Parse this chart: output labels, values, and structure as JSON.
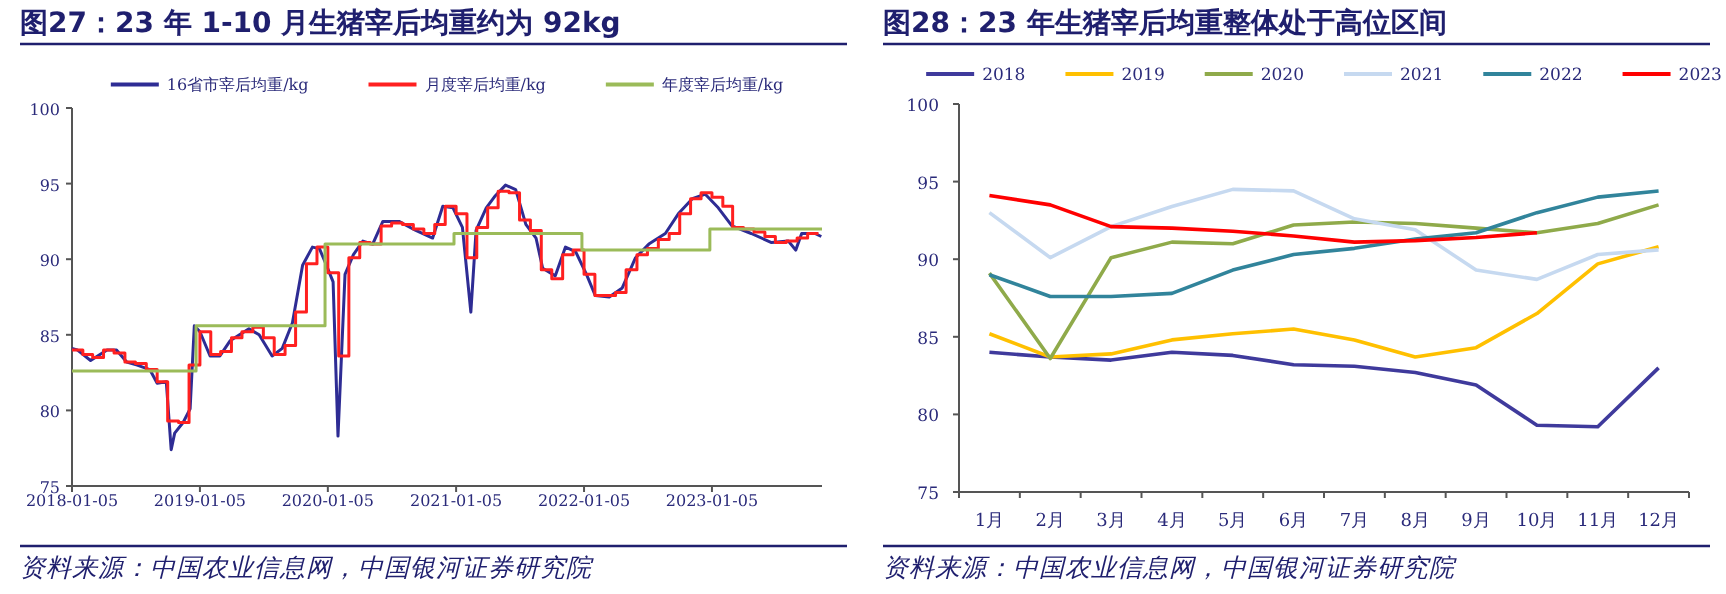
{
  "chart_data": [
    {
      "type": "line",
      "title": "图27：23 年 1-10 月生猪宰后均重约为 92kg",
      "annotations": [
        "资料来源：中国农业信息网，中国银河证券研究院"
      ],
      "legend": "top",
      "xlim": [
        "2018-01-05",
        "2023-11-15"
      ],
      "xticks": [
        "2018-01-05",
        "2019-01-05",
        "2020-01-05",
        "2021-01-05",
        "2022-01-05",
        "2023-01-05"
      ],
      "ylim": [
        75,
        100
      ],
      "yticks": [
        75,
        80,
        85,
        90,
        95,
        100
      ],
      "series": [
        {
          "name": "16省市宰后均重/kg",
          "color": "#2e2c94",
          "x": [
            "2018-01-05",
            "2018-01-20",
            "2018-02-27",
            "2018-04-15",
            "2018-05-12",
            "2018-06-10",
            "2018-07-10",
            "2018-08-15",
            "2018-09-05",
            "2018-10-01",
            "2018-10-15",
            "2018-10-25",
            "2018-11-18",
            "2018-12-08",
            "2018-12-20",
            "2019-01-05",
            "2019-02-03",
            "2019-03-03",
            "2019-04-01",
            "2019-05-25",
            "2019-06-23",
            "2019-07-30",
            "2019-08-28",
            "2019-09-26",
            "2019-10-25",
            "2019-11-22",
            "2019-12-12",
            "2020-01-01",
            "2020-01-20",
            "2020-02-03",
            "2020-02-23",
            "2020-03-18",
            "2020-04-14",
            "2020-05-12",
            "2020-06-10",
            "2020-07-26",
            "2020-09-12",
            "2020-10-30",
            "2020-11-28",
            "2020-12-27",
            "2021-01-23",
            "2021-02-16",
            "2021-03-03",
            "2021-04-01",
            "2021-04-27",
            "2021-05-26",
            "2021-06-24",
            "2021-07-23",
            "2021-08-21",
            "2021-09-09",
            "2021-10-15",
            "2021-11-13",
            "2021-12-12",
            "2022-01-12",
            "2022-02-06",
            "2022-03-18",
            "2022-04-24",
            "2022-06-01",
            "2022-07-09",
            "2022-08-25",
            "2022-10-01",
            "2022-11-10",
            "2022-12-17",
            "2023-01-23",
            "2023-03-03",
            "2023-04-27",
            "2023-06-24",
            "2023-08-11",
            "2023-09-01",
            "2023-09-18",
            "2023-10-26",
            "2023-11-13"
          ],
          "values": [
            84.1,
            84.0,
            83.3,
            84.0,
            84.0,
            83.2,
            83.0,
            82.7,
            81.8,
            81.9,
            77.4,
            78.5,
            79.2,
            80.1,
            85.6,
            85.2,
            83.6,
            83.6,
            84.6,
            85.4,
            85.0,
            83.6,
            84.1,
            85.8,
            89.6,
            90.8,
            90.7,
            89.6,
            88.5,
            78.3,
            89.0,
            90.3,
            91.2,
            91.0,
            92.5,
            92.5,
            91.9,
            91.4,
            93.5,
            93.4,
            92.1,
            86.5,
            91.9,
            93.4,
            94.2,
            94.9,
            94.6,
            92.3,
            91.4,
            89.4,
            88.9,
            90.8,
            90.5,
            89.0,
            87.6,
            87.5,
            88.1,
            90.1,
            91.0,
            91.7,
            93.0,
            94.0,
            94.3,
            93.4,
            92.2,
            91.7,
            91.1,
            91.2,
            90.6,
            91.7,
            91.7,
            91.5
          ]
        },
        {
          "name": "月度宰后均重/kg",
          "color": "#ff2020",
          "type": "step",
          "x": [
            "2018-01-05",
            "2018-02-05",
            "2018-03-05",
            "2018-04-05",
            "2018-05-05",
            "2018-06-05",
            "2018-07-05",
            "2018-08-05",
            "2018-09-05",
            "2018-10-05",
            "2018-11-05",
            "2018-12-05",
            "2019-01-05",
            "2019-02-05",
            "2019-03-05",
            "2019-04-05",
            "2019-05-05",
            "2019-06-05",
            "2019-07-05",
            "2019-08-05",
            "2019-09-05",
            "2019-10-05",
            "2019-11-05",
            "2019-12-05",
            "2020-01-05",
            "2020-02-05",
            "2020-03-05",
            "2020-04-05",
            "2020-05-05",
            "2020-06-05",
            "2020-07-05",
            "2020-08-05",
            "2020-09-05",
            "2020-10-05",
            "2020-11-05",
            "2020-12-05",
            "2021-01-05",
            "2021-02-05",
            "2021-03-05",
            "2021-04-05",
            "2021-05-05",
            "2021-06-05",
            "2021-07-05",
            "2021-08-05",
            "2021-09-05",
            "2021-10-05",
            "2021-11-05",
            "2021-12-05",
            "2022-01-05",
            "2022-02-05",
            "2022-03-05",
            "2022-04-05",
            "2022-05-05",
            "2022-06-05",
            "2022-07-05",
            "2022-08-05",
            "2022-09-05",
            "2022-10-05",
            "2022-11-05",
            "2022-12-05",
            "2023-01-05",
            "2023-02-05",
            "2023-03-05",
            "2023-04-05",
            "2023-05-05",
            "2023-06-05",
            "2023-07-05",
            "2023-08-05",
            "2023-09-05",
            "2023-10-05",
            "2023-11-05"
          ],
          "values": [
            84.0,
            83.7,
            83.5,
            84.0,
            83.8,
            83.2,
            83.1,
            82.7,
            81.9,
            79.3,
            79.2,
            83.0,
            85.2,
            83.7,
            83.9,
            84.8,
            85.2,
            85.5,
            84.8,
            83.7,
            84.3,
            86.5,
            89.7,
            90.8,
            89.1,
            83.6,
            90.1,
            91.1,
            91.0,
            92.2,
            92.4,
            92.3,
            92.0,
            91.7,
            92.3,
            93.5,
            93.0,
            90.1,
            92.1,
            93.4,
            94.5,
            94.4,
            92.6,
            91.9,
            89.3,
            88.7,
            90.3,
            90.6,
            89.0,
            87.6,
            87.6,
            87.8,
            89.3,
            90.3,
            90.7,
            91.3,
            91.7,
            93.0,
            94.0,
            94.4,
            94.1,
            93.5,
            92.1,
            92.0,
            91.8,
            91.5,
            91.1,
            91.2,
            91.4,
            91.7,
            91.7
          ]
        },
        {
          "name": "年度宰后均重/kg",
          "color": "#9bbb59",
          "type": "step",
          "x": [
            "2018-01-05",
            "2018-12-25",
            "2019-12-28",
            "2020-12-30",
            "2021-12-30",
            "2022-12-30",
            "2023-11-15"
          ],
          "values": [
            82.6,
            85.6,
            91.0,
            91.7,
            90.6,
            92.0,
            92.0
          ]
        }
      ]
    },
    {
      "type": "line",
      "title": "图28：23 年生猪宰后均重整体处于高位区间",
      "annotations": [
        "资料来源：中国农业信息网，中国银河证券研究院"
      ],
      "legend": "top",
      "categories": [
        "1月",
        "2月",
        "3月",
        "4月",
        "5月",
        "6月",
        "7月",
        "8月",
        "9月",
        "10月",
        "11月",
        "12月"
      ],
      "ylim": [
        75,
        100
      ],
      "yticks": [
        75,
        80,
        85,
        90,
        95,
        100
      ],
      "series": [
        {
          "name": "2018",
          "color": "#3f3a9c",
          "values": [
            84.0,
            83.7,
            83.5,
            84.0,
            83.8,
            83.2,
            83.1,
            82.7,
            81.9,
            79.3,
            79.2,
            83.0
          ]
        },
        {
          "name": "2019",
          "color": "#ffc000",
          "values": [
            85.2,
            83.7,
            83.9,
            84.8,
            85.2,
            85.5,
            84.8,
            83.7,
            84.3,
            86.5,
            89.7,
            90.8
          ]
        },
        {
          "name": "2020",
          "color": "#8faa4a",
          "values": [
            89.1,
            83.6,
            90.1,
            91.1,
            91.0,
            92.2,
            92.4,
            92.3,
            92.0,
            91.7,
            92.3,
            93.5
          ]
        },
        {
          "name": "2021",
          "color": "#c6d9f0",
          "values": [
            93.0,
            90.1,
            92.1,
            93.4,
            94.5,
            94.4,
            92.6,
            91.9,
            89.3,
            88.7,
            90.3,
            90.6
          ]
        },
        {
          "name": "2022",
          "color": "#31849b",
          "values": [
            89.0,
            87.6,
            87.6,
            87.8,
            89.3,
            90.3,
            90.7,
            91.3,
            91.7,
            93.0,
            94.0,
            94.4
          ]
        },
        {
          "name": "2023",
          "color": "#ff0000",
          "values": [
            94.1,
            93.5,
            92.1,
            92.0,
            91.8,
            91.5,
            91.1,
            91.2,
            91.4,
            91.7,
            null,
            null
          ]
        }
      ]
    }
  ]
}
